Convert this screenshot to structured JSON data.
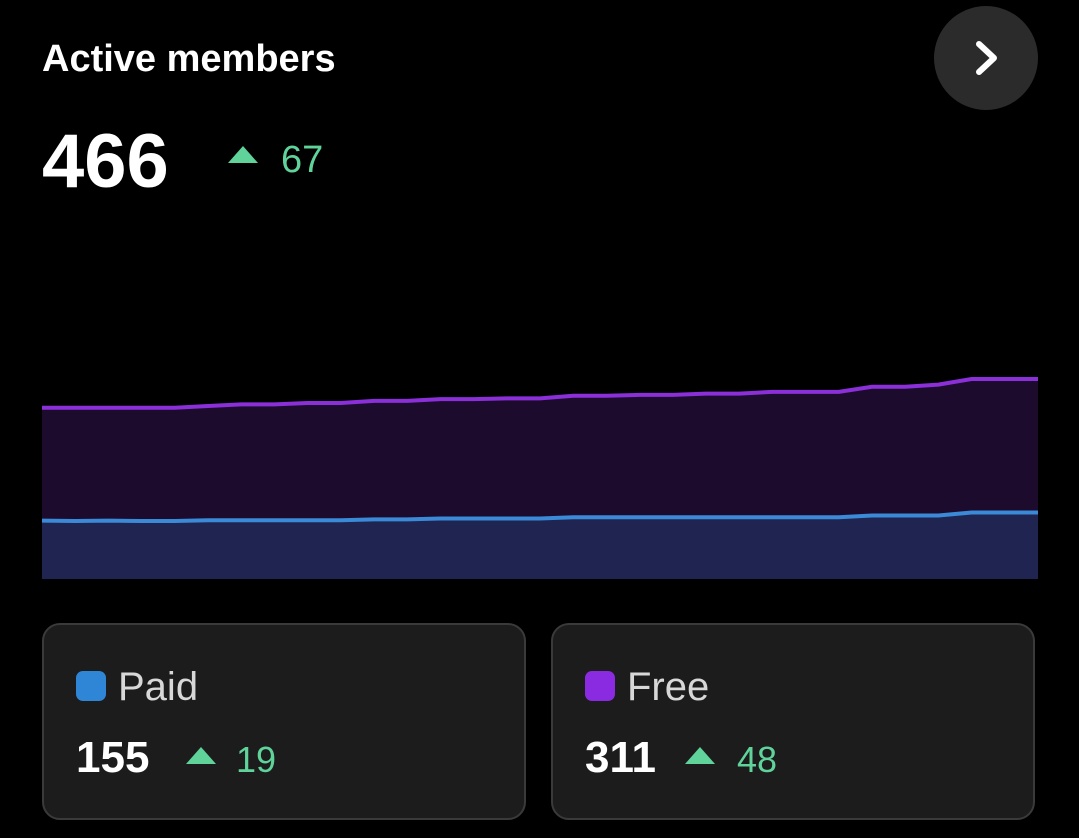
{
  "header": {
    "title": "Active members",
    "total": "466",
    "change": "67"
  },
  "chart_data": {
    "type": "area",
    "stacked": true,
    "series": [
      {
        "name": "Paid",
        "color": "#3a8ad8",
        "fill": "#1f2451",
        "values": [
          136,
          135,
          136,
          135,
          135,
          137,
          137,
          137,
          137,
          137,
          139,
          139,
          141,
          141,
          141,
          141,
          144,
          144,
          144,
          144,
          144,
          144,
          144,
          144,
          144,
          148,
          148,
          148,
          155,
          155,
          155
        ]
      },
      {
        "name": "Free",
        "color": "#8b2fd9",
        "fill": "#1c0b2d",
        "values": [
          263,
          264,
          263,
          264,
          264,
          266,
          270,
          270,
          273,
          273,
          276,
          276,
          278,
          278,
          280,
          280,
          283,
          283,
          285,
          285,
          288,
          288,
          292,
          292,
          292,
          300,
          300,
          305,
          311,
          311,
          311
        ]
      }
    ]
  },
  "cards": [
    {
      "label": "Paid",
      "value": "155",
      "change": "19",
      "color": "#2f86d6"
    },
    {
      "label": "Free",
      "value": "311",
      "change": "48",
      "color": "#8a2be2"
    }
  ]
}
